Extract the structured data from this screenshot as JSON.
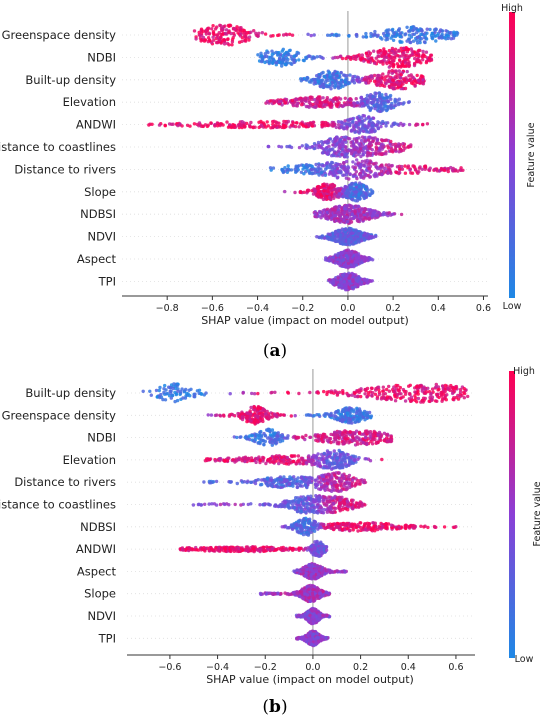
{
  "chart_data": [
    {
      "type": "scatter",
      "panel_label": "(a)",
      "panel_letter": "a",
      "xlabel": "SHAP value (impact on model output)",
      "xlim": [
        -1.0,
        0.62
      ],
      "xticks": [
        -0.8,
        -0.6,
        -0.4,
        -0.2,
        0.0,
        0.2,
        0.4,
        0.6
      ],
      "xtick_labels": [
        "−0.8",
        "−0.6",
        "−0.4",
        "−0.2",
        "0.0",
        "0.2",
        "0.4",
        "0.6"
      ],
      "colorbar_title": "Feature value",
      "colorbar_high": "High",
      "colorbar_low": "Low",
      "features": [
        {
          "name": "Greenspace density",
          "min": -0.68,
          "max": 0.49,
          "lobes": [
            {
              "c": -0.55,
              "w": 0.09,
              "h": 1.0,
              "v": 0.92
            },
            {
              "c": 0.3,
              "w": 0.12,
              "h": 0.75,
              "v": 0.15
            }
          ]
        },
        {
          "name": "NDBI",
          "min": -0.4,
          "max": 0.37,
          "lobes": [
            {
              "c": -0.3,
              "w": 0.07,
              "h": 0.8,
              "v": 0.12
            },
            {
              "c": 0.22,
              "w": 0.1,
              "h": 1.0,
              "v": 0.88
            }
          ]
        },
        {
          "name": "Built-up density",
          "min": -0.22,
          "max": 0.34,
          "lobes": [
            {
              "c": -0.07,
              "w": 0.06,
              "h": 0.85,
              "v": 0.15
            },
            {
              "c": 0.22,
              "w": 0.08,
              "h": 0.9,
              "v": 0.85
            }
          ]
        },
        {
          "name": "Elevation",
          "min": -0.37,
          "max": 0.28,
          "lobes": [
            {
              "c": -0.12,
              "w": 0.13,
              "h": 0.45,
              "v": 0.8
            },
            {
              "c": 0.14,
              "w": 0.05,
              "h": 0.9,
              "v": 0.2
            }
          ]
        },
        {
          "name": "ANDWI",
          "min": -0.91,
          "max": 0.36,
          "lobes": [
            {
              "c": -0.35,
              "w": 0.22,
              "h": 0.25,
              "v": 0.9
            },
            {
              "c": 0.07,
              "w": 0.06,
              "h": 0.8,
              "v": 0.35
            }
          ]
        },
        {
          "name": "Distance to coastlines",
          "min": -0.39,
          "max": 0.3,
          "lobes": [
            {
              "c": -0.02,
              "w": 0.08,
              "h": 0.9,
              "v": 0.4
            },
            {
              "c": 0.12,
              "w": 0.1,
              "h": 0.65,
              "v": 0.75
            }
          ]
        },
        {
          "name": "Distance to rivers",
          "min": -0.35,
          "max": 0.54,
          "lobes": [
            {
              "c": -0.15,
              "w": 0.12,
              "h": 0.4,
              "v": 0.15
            },
            {
              "c": 0.03,
              "w": 0.07,
              "h": 0.9,
              "v": 0.55
            },
            {
              "c": 0.25,
              "w": 0.15,
              "h": 0.3,
              "v": 0.85
            }
          ]
        },
        {
          "name": "Slope",
          "min": -0.28,
          "max": 0.11,
          "lobes": [
            {
              "c": -0.09,
              "w": 0.04,
              "h": 0.75,
              "v": 0.85
            },
            {
              "c": 0.04,
              "w": 0.04,
              "h": 0.85,
              "v": 0.2
            }
          ]
        },
        {
          "name": "NDBSI",
          "min": -0.15,
          "max": 0.24,
          "lobes": [
            {
              "c": 0.0,
              "w": 0.08,
              "h": 0.85,
              "v": 0.6
            }
          ]
        },
        {
          "name": "NDVI",
          "min": -0.14,
          "max": 0.13,
          "lobes": [
            {
              "c": 0.0,
              "w": 0.05,
              "h": 0.75,
              "v": 0.3
            }
          ]
        },
        {
          "name": "Aspect",
          "min": -0.1,
          "max": 0.11,
          "lobes": [
            {
              "c": 0.0,
              "w": 0.04,
              "h": 0.85,
              "v": 0.5
            }
          ]
        },
        {
          "name": "TPI",
          "min": -0.09,
          "max": 0.11,
          "lobes": [
            {
              "c": 0.0,
              "w": 0.04,
              "h": 0.8,
              "v": 0.5
            }
          ]
        }
      ]
    },
    {
      "type": "scatter",
      "panel_label": "(b)",
      "panel_letter": "b",
      "xlabel": "SHAP value (impact on model output)",
      "xlim": [
        -0.78,
        0.68
      ],
      "xticks": [
        -0.6,
        -0.4,
        -0.2,
        0.0,
        0.2,
        0.4,
        0.6
      ],
      "xtick_labels": [
        "−0.6",
        "−0.4",
        "−0.2",
        "0.0",
        "0.2",
        "0.4",
        "0.6"
      ],
      "colorbar_title": "Feature value",
      "colorbar_high": "High",
      "colorbar_low": "Low",
      "features": [
        {
          "name": "Built-up density",
          "min": -0.73,
          "max": 0.66,
          "lobes": [
            {
              "c": -0.58,
              "w": 0.06,
              "h": 0.95,
              "v": 0.1
            },
            {
              "c": 0.45,
              "w": 0.18,
              "h": 0.9,
              "v": 0.9
            }
          ]
        },
        {
          "name": "Greenspace density",
          "min": -0.45,
          "max": 0.25,
          "lobes": [
            {
              "c": -0.24,
              "w": 0.04,
              "h": 0.9,
              "v": 0.88
            },
            {
              "c": 0.16,
              "w": 0.05,
              "h": 0.75,
              "v": 0.15
            }
          ]
        },
        {
          "name": "NDBI",
          "min": -0.33,
          "max": 0.33,
          "lobes": [
            {
              "c": -0.19,
              "w": 0.04,
              "h": 0.85,
              "v": 0.15
            },
            {
              "c": 0.18,
              "w": 0.12,
              "h": 0.7,
              "v": 0.8
            }
          ]
        },
        {
          "name": "Elevation",
          "min": -0.46,
          "max": 0.29,
          "lobes": [
            {
              "c": -0.12,
              "w": 0.15,
              "h": 0.35,
              "v": 0.85
            },
            {
              "c": 0.09,
              "w": 0.05,
              "h": 0.9,
              "v": 0.25
            }
          ]
        },
        {
          "name": "Distance to rivers",
          "min": -0.48,
          "max": 0.22,
          "lobes": [
            {
              "c": -0.1,
              "w": 0.1,
              "h": 0.5,
              "v": 0.25
            },
            {
              "c": 0.1,
              "w": 0.06,
              "h": 0.9,
              "v": 0.75
            }
          ]
        },
        {
          "name": "Distance to coastlines",
          "min": -0.51,
          "max": 0.22,
          "lobes": [
            {
              "c": -0.03,
              "w": 0.06,
              "h": 0.8,
              "v": 0.3
            },
            {
              "c": 0.1,
              "w": 0.06,
              "h": 0.7,
              "v": 0.8
            }
          ]
        },
        {
          "name": "NDBSI",
          "min": -0.15,
          "max": 0.6,
          "lobes": [
            {
              "c": -0.03,
              "w": 0.03,
              "h": 0.85,
              "v": 0.15
            },
            {
              "c": 0.2,
              "w": 0.12,
              "h": 0.35,
              "v": 0.9
            }
          ]
        },
        {
          "name": "ANDWI",
          "min": -0.57,
          "max": 0.06,
          "lobes": [
            {
              "c": -0.3,
              "w": 0.15,
              "h": 0.18,
              "v": 0.9
            },
            {
              "c": 0.02,
              "w": 0.02,
              "h": 0.8,
              "v": 0.35
            }
          ]
        },
        {
          "name": "Aspect",
          "min": -0.08,
          "max": 0.15,
          "lobes": [
            {
              "c": 0.0,
              "w": 0.03,
              "h": 0.75,
              "v": 0.55
            }
          ]
        },
        {
          "name": "Slope",
          "min": -0.22,
          "max": 0.07,
          "lobes": [
            {
              "c": -0.01,
              "w": 0.03,
              "h": 0.8,
              "v": 0.6
            }
          ]
        },
        {
          "name": "NDVI",
          "min": -0.07,
          "max": 0.07,
          "lobes": [
            {
              "c": 0.0,
              "w": 0.02,
              "h": 0.75,
              "v": 0.5
            }
          ]
        },
        {
          "name": "TPI",
          "min": -0.07,
          "max": 0.07,
          "lobes": [
            {
              "c": 0.0,
              "w": 0.02,
              "h": 0.7,
              "v": 0.5
            }
          ]
        }
      ]
    }
  ],
  "colors": {
    "high": "#ff0052",
    "mid": "#8b3fd6",
    "low": "#1e88e5",
    "axis": "#333333",
    "zero_line": "#999999"
  }
}
